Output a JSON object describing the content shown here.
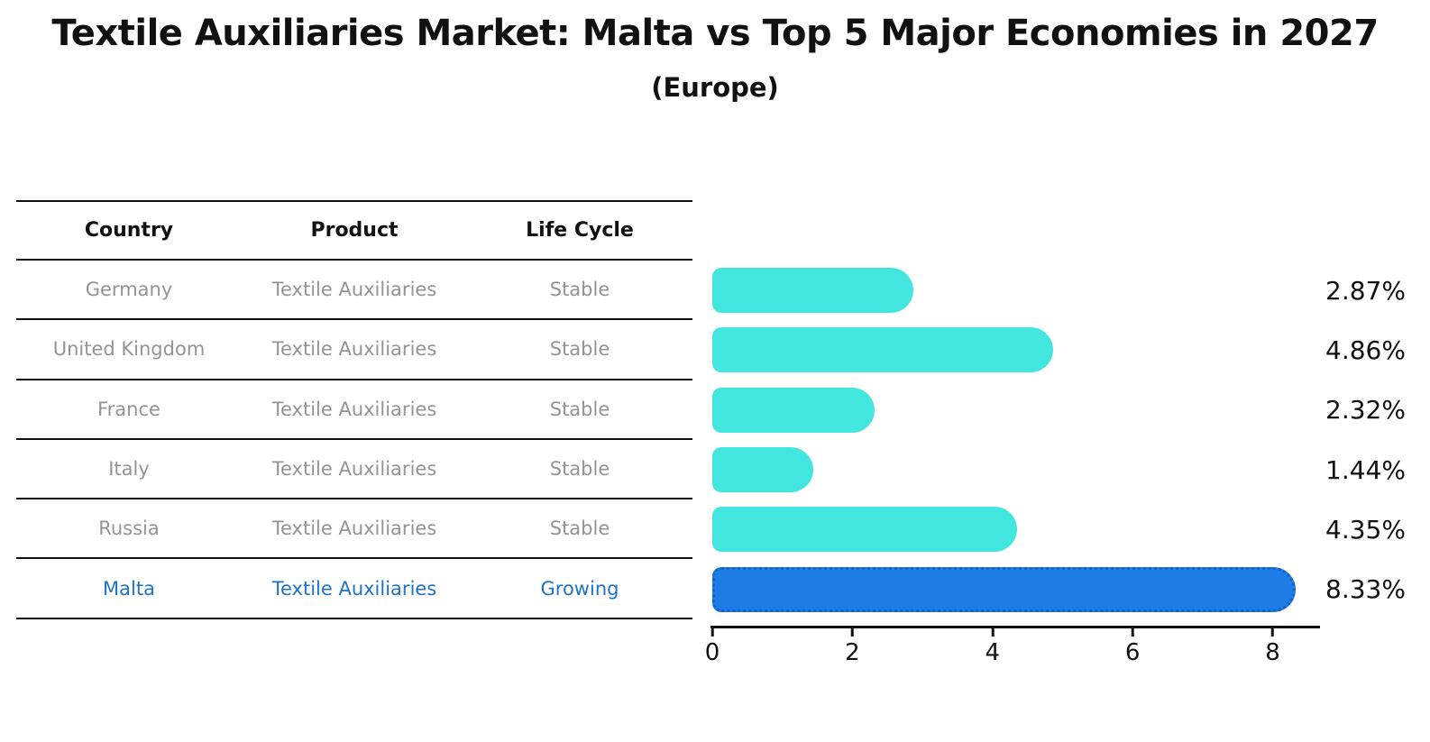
{
  "page": {
    "title": "Textile Auxiliaries Market: Malta vs Top 5 Major Economies in 2027",
    "subtitle": "(Europe)"
  },
  "table": {
    "headers": [
      "Country",
      "Product",
      "Life Cycle"
    ],
    "rows": [
      {
        "country": "Germany",
        "product": "Textile Auxiliaries",
        "life_cycle": "Stable"
      },
      {
        "country": "United Kingdom",
        "product": "Textile Auxiliaries",
        "life_cycle": "Stable"
      },
      {
        "country": "France",
        "product": "Textile Auxiliaries",
        "life_cycle": "Stable"
      },
      {
        "country": "Italy",
        "product": "Textile Auxiliaries",
        "life_cycle": "Stable"
      },
      {
        "country": "Russia",
        "product": "Textile Auxiliaries",
        "life_cycle": "Stable"
      },
      {
        "country": "Malta",
        "product": "Textile Auxiliaries",
        "life_cycle": "Growing"
      }
    ]
  },
  "chart_data": {
    "type": "bar",
    "orientation": "horizontal",
    "title": "Textile Auxiliaries Market: Malta vs Top 5 Major Economies in 2027",
    "subtitle": "(Europe)",
    "categories": [
      "Germany",
      "United Kingdom",
      "France",
      "Italy",
      "Russia",
      "Malta"
    ],
    "values": [
      2.87,
      4.86,
      2.32,
      1.44,
      4.35,
      8.33
    ],
    "value_labels": [
      "2.87%",
      "4.86%",
      "2.32%",
      "1.44%",
      "4.35%",
      "8.33%"
    ],
    "unit": "%",
    "xlim": [
      0,
      8.65
    ],
    "x_ticks": [
      0,
      2,
      4,
      6,
      8
    ],
    "grid": false,
    "legend": "none",
    "bar_color": "#42E6DE",
    "highlight_index": 5,
    "highlight_color": "#1E7CE6",
    "highlight_border_color": "#1364C8",
    "highlight_text_color": "#1E73C4",
    "table_text_color": "#949494",
    "axis_color": "#111111"
  }
}
